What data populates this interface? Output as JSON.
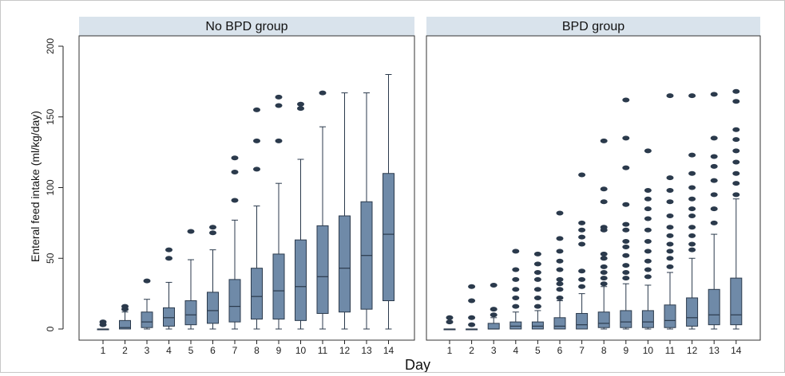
{
  "chart_data": {
    "type": "box",
    "xlabel": "Day",
    "ylabel": "Enteral feed intake (ml/kg/day)",
    "ylim": [
      0,
      200
    ],
    "yticks": [
      0,
      50,
      100,
      150,
      200
    ],
    "categories": [
      "1",
      "2",
      "3",
      "4",
      "5",
      "6",
      "7",
      "8",
      "9",
      "10",
      "11",
      "12",
      "13",
      "14"
    ],
    "grid": false,
    "colors": {
      "box": "#6f8aa8",
      "box_edge": "#2b3a4c",
      "outlier": "#2b3a4c",
      "panel_header": "#d9e3ec"
    },
    "panels": [
      {
        "name": "No BPD group",
        "boxes": [
          {
            "day": "1",
            "q1": 0,
            "median": 0,
            "q3": 0,
            "whisker_low": 0,
            "whisker_high": 0,
            "outliers": [
              3,
              5
            ]
          },
          {
            "day": "2",
            "q1": 0,
            "median": 1,
            "q3": 6,
            "whisker_low": 0,
            "whisker_high": 12,
            "outliers": [
              14,
              16
            ]
          },
          {
            "day": "3",
            "q1": 1,
            "median": 5,
            "q3": 12,
            "whisker_low": 0,
            "whisker_high": 21,
            "outliers": [
              34
            ]
          },
          {
            "day": "4",
            "q1": 2,
            "median": 8,
            "q3": 15,
            "whisker_low": 0,
            "whisker_high": 33,
            "outliers": [
              50,
              56
            ]
          },
          {
            "day": "5",
            "q1": 3,
            "median": 10,
            "q3": 20,
            "whisker_low": 0,
            "whisker_high": 49,
            "outliers": [
              69
            ]
          },
          {
            "day": "6",
            "q1": 4,
            "median": 13,
            "q3": 26,
            "whisker_low": 0,
            "whisker_high": 56,
            "outliers": [
              68,
              72
            ]
          },
          {
            "day": "7",
            "q1": 5,
            "median": 16,
            "q3": 35,
            "whisker_low": 0,
            "whisker_high": 77,
            "outliers": [
              91,
              111,
              121
            ]
          },
          {
            "day": "8",
            "q1": 7,
            "median": 23,
            "q3": 43,
            "whisker_low": 0,
            "whisker_high": 87,
            "outliers": [
              113,
              133,
              155
            ]
          },
          {
            "day": "9",
            "q1": 7,
            "median": 27,
            "q3": 53,
            "whisker_low": 0,
            "whisker_high": 103,
            "outliers": [
              133,
              158,
              164
            ]
          },
          {
            "day": "10",
            "q1": 6,
            "median": 30,
            "q3": 63,
            "whisker_low": 0,
            "whisker_high": 120,
            "outliers": [
              156,
              159
            ]
          },
          {
            "day": "11",
            "q1": 11,
            "median": 37,
            "q3": 73,
            "whisker_low": 0,
            "whisker_high": 143,
            "outliers": [
              167
            ]
          },
          {
            "day": "12",
            "q1": 12,
            "median": 43,
            "q3": 80,
            "whisker_low": 0,
            "whisker_high": 167,
            "outliers": []
          },
          {
            "day": "13",
            "q1": 14,
            "median": 52,
            "q3": 90,
            "whisker_low": 0,
            "whisker_high": 167,
            "outliers": []
          },
          {
            "day": "14",
            "q1": 20,
            "median": 67,
            "q3": 110,
            "whisker_low": 0,
            "whisker_high": 180,
            "outliers": []
          }
        ]
      },
      {
        "name": "BPD group",
        "boxes": [
          {
            "day": "1",
            "q1": 0,
            "median": 0,
            "q3": 0,
            "whisker_low": 0,
            "whisker_high": 0,
            "outliers": [
              5,
              8
            ]
          },
          {
            "day": "2",
            "q1": 0,
            "median": 0,
            "q3": 0,
            "whisker_low": 0,
            "whisker_high": 0,
            "outliers": [
              3,
              8,
              20,
              30
            ]
          },
          {
            "day": "3",
            "q1": 0,
            "median": 0,
            "q3": 4,
            "whisker_low": 0,
            "whisker_high": 8,
            "outliers": [
              10,
              14,
              31
            ]
          },
          {
            "day": "4",
            "q1": 0,
            "median": 2,
            "q3": 5,
            "whisker_low": 0,
            "whisker_high": 12,
            "outliers": [
              16,
              22,
              28,
              35,
              42,
              55
            ]
          },
          {
            "day": "5",
            "q1": 0,
            "median": 2,
            "q3": 5,
            "whisker_low": 0,
            "whisker_high": 13,
            "outliers": [
              16,
              22,
              28,
              35,
              40,
              46,
              53
            ]
          },
          {
            "day": "6",
            "q1": 0,
            "median": 2,
            "q3": 8,
            "whisker_low": 0,
            "whisker_high": 20,
            "outliers": [
              22,
              28,
              32,
              35,
              42,
              48,
              55,
              64,
              82
            ]
          },
          {
            "day": "7",
            "q1": 0,
            "median": 3,
            "q3": 11,
            "whisker_low": 0,
            "whisker_high": 25,
            "outliers": [
              30,
              35,
              41,
              60,
              65,
              70,
              75,
              109
            ]
          },
          {
            "day": "8",
            "q1": 1,
            "median": 4,
            "q3": 12,
            "whisker_low": 0,
            "whisker_high": 30,
            "outliers": [
              32,
              36,
              40,
              44,
              50,
              53,
              70,
              72,
              90,
              99,
              133
            ]
          },
          {
            "day": "9",
            "q1": 1,
            "median": 5,
            "q3": 13,
            "whisker_low": 0,
            "whisker_high": 32,
            "outliers": [
              36,
              40,
              45,
              52,
              58,
              62,
              70,
              74,
              88,
              114,
              135,
              162
            ]
          },
          {
            "day": "10",
            "q1": 1,
            "median": 5,
            "q3": 13,
            "whisker_low": 0,
            "whisker_high": 31,
            "outliers": [
              37,
              42,
              48,
              55,
              62,
              70,
              78,
              85,
              92,
              98,
              126
            ]
          },
          {
            "day": "11",
            "q1": 1,
            "median": 6,
            "q3": 17,
            "whisker_low": 0,
            "whisker_high": 40,
            "outliers": [
              44,
              50,
              55,
              60,
              66,
              72,
              80,
              90,
              98,
              107,
              165
            ]
          },
          {
            "day": "12",
            "q1": 2,
            "median": 8,
            "q3": 22,
            "whisker_low": 0,
            "whisker_high": 50,
            "outliers": [
              56,
              60,
              66,
              72,
              80,
              85,
              92,
              100,
              110,
              123,
              165
            ]
          },
          {
            "day": "13",
            "q1": 3,
            "median": 10,
            "q3": 28,
            "whisker_low": 0,
            "whisker_high": 67,
            "outliers": [
              75,
              85,
              95,
              105,
              115,
              122,
              135,
              166
            ]
          },
          {
            "day": "14",
            "q1": 3,
            "median": 10,
            "q3": 36,
            "whisker_low": 0,
            "whisker_high": 92,
            "outliers": [
              95,
              103,
              110,
              118,
              126,
              134,
              141,
              161,
              168
            ]
          }
        ]
      }
    ]
  }
}
